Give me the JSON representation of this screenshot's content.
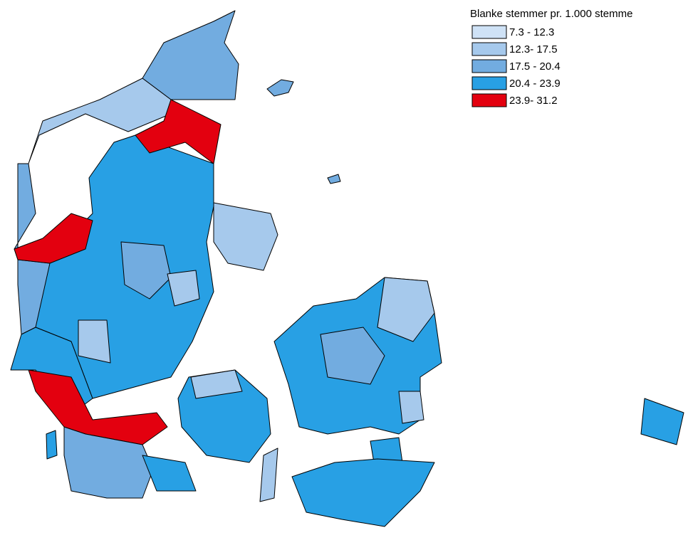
{
  "legend": {
    "title": "Blanke stemmer pr. 1.000 stemme",
    "items": [
      {
        "label": "7.3 - 12.3",
        "color": "#cfe2f6"
      },
      {
        "label": "12.3- 17.5",
        "color": "#a6c9ec"
      },
      {
        "label": "17.5 - 20.4",
        "color": "#72ace0"
      },
      {
        "label": "20.4 - 23.9",
        "color": "#28a0e4"
      },
      {
        "label": "23.9- 31.2",
        "color": "#e3000f"
      }
    ]
  }
}
